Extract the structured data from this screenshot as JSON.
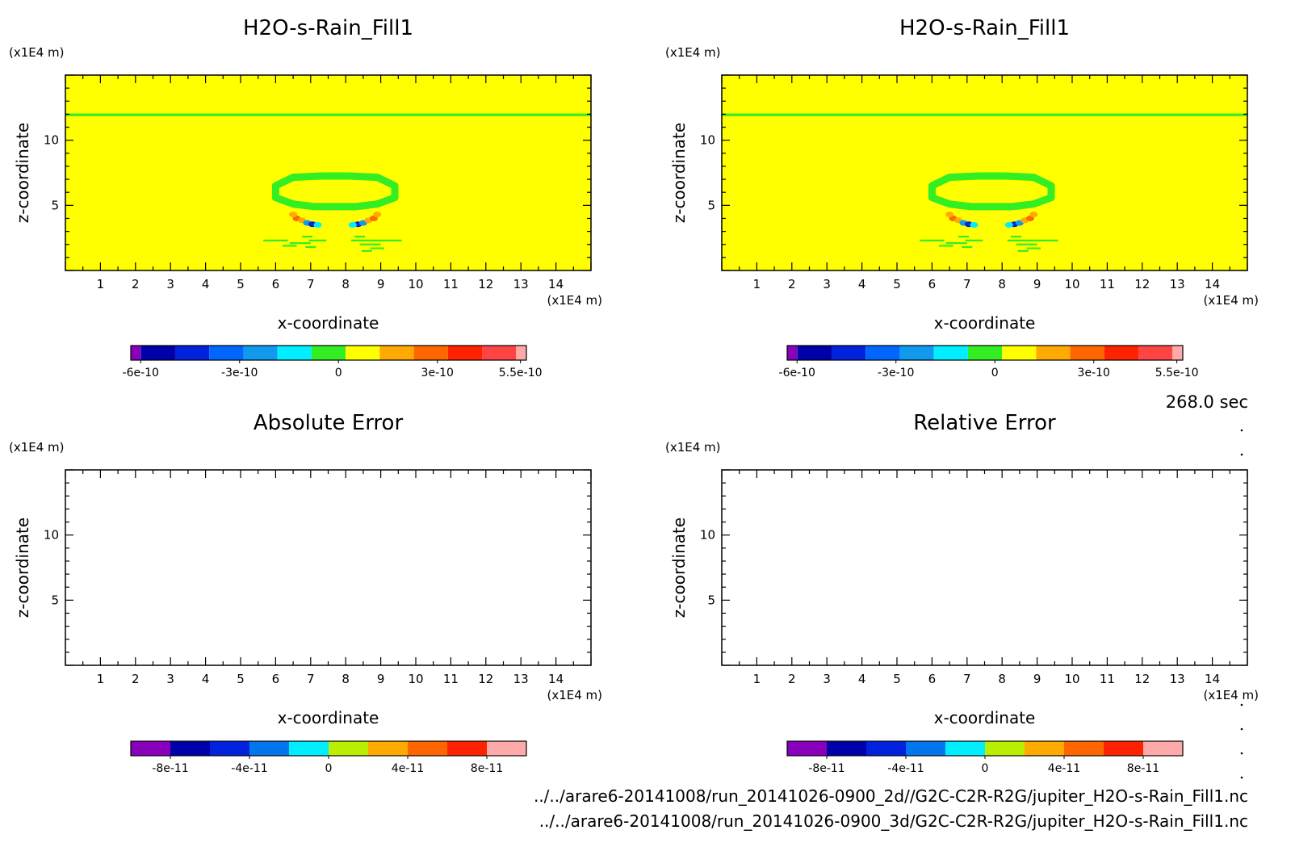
{
  "footer": {
    "time_label": "268.0 sec",
    "file_paths": [
      "../../arare6-20141008/run_20141026-0900_2d//G2C-C2R-R2G/jupiter_H2O-s-Rain_Fill1.nc",
      "../../arare6-20141008/run_20141026-0900_3d/G2C-C2R-R2G/jupiter_H2O-s-Rain_Fill1.nc"
    ]
  },
  "colors": {
    "field_background": "#ffff00",
    "field_green": "#33ee22",
    "frame": "#000000"
  },
  "chart_data": [
    {
      "type": "heatmap",
      "title": "H2O-s-Rain_Fill1",
      "xlabel": "x-coordinate",
      "ylabel": "z-coordinate",
      "x_unit": "(x1E4 m)",
      "y_unit": "(x1E4 m)",
      "xlim": [
        0,
        15
      ],
      "ylim": [
        0,
        15
      ],
      "x_ticks": [
        "1",
        "2",
        "3",
        "4",
        "5",
        "6",
        "7",
        "8",
        "9",
        "10",
        "11",
        "12",
        "13",
        "14"
      ],
      "y_ticks": [
        "5",
        "10"
      ],
      "filled": true,
      "colorbar": {
        "tick_labels": [
          "-6e-10",
          "-3e-10",
          "0",
          "3e-10",
          "5.5e-10"
        ],
        "colors": [
          "#8800bb",
          "#0000aa",
          "#0022dd",
          "#0066ff",
          "#1199ee",
          "#00eeff",
          "#33ee22",
          "#ffff00",
          "#ffaa00",
          "#ff6600",
          "#ff2200",
          "#ff4444",
          "#ffaaaa"
        ]
      }
    },
    {
      "type": "heatmap",
      "title": "H2O-s-Rain_Fill1",
      "xlabel": "x-coordinate",
      "ylabel": "z-coordinate",
      "x_unit": "(x1E4 m)",
      "y_unit": "(x1E4 m)",
      "xlim": [
        0,
        15
      ],
      "ylim": [
        0,
        15
      ],
      "x_ticks": [
        "1",
        "2",
        "3",
        "4",
        "5",
        "6",
        "7",
        "8",
        "9",
        "10",
        "11",
        "12",
        "13",
        "14"
      ],
      "y_ticks": [
        "5",
        "10"
      ],
      "filled": true,
      "colorbar": {
        "tick_labels": [
          "-6e-10",
          "-3e-10",
          "0",
          "3e-10",
          "5.5e-10"
        ],
        "colors": [
          "#8800bb",
          "#0000aa",
          "#0022dd",
          "#0066ff",
          "#1199ee",
          "#00eeff",
          "#33ee22",
          "#ffff00",
          "#ffaa00",
          "#ff6600",
          "#ff2200",
          "#ff4444",
          "#ffaaaa"
        ]
      }
    },
    {
      "type": "heatmap",
      "title": "Absolute Error",
      "xlabel": "x-coordinate",
      "ylabel": "z-coordinate",
      "x_unit": "(x1E4 m)",
      "y_unit": "(x1E4 m)",
      "xlim": [
        0,
        15
      ],
      "ylim": [
        0,
        15
      ],
      "x_ticks": [
        "1",
        "2",
        "3",
        "4",
        "5",
        "6",
        "7",
        "8",
        "9",
        "10",
        "11",
        "12",
        "13",
        "14"
      ],
      "y_ticks": [
        "5",
        "10"
      ],
      "filled": false,
      "colorbar": {
        "tick_labels": [
          "-8e-11",
          "-4e-11",
          "0",
          "4e-11",
          "8e-11"
        ],
        "colors": [
          "#8800bb",
          "#0000aa",
          "#0022dd",
          "#0077ee",
          "#00eeff",
          "#bbee00",
          "#ffaa00",
          "#ff6600",
          "#ff2200",
          "#ffaaaa"
        ]
      }
    },
    {
      "type": "heatmap",
      "title": "Relative Error",
      "xlabel": "x-coordinate",
      "ylabel": "z-coordinate",
      "x_unit": "(x1E4 m)",
      "y_unit": "(x1E4 m)",
      "xlim": [
        0,
        15
      ],
      "ylim": [
        0,
        15
      ],
      "x_ticks": [
        "1",
        "2",
        "3",
        "4",
        "5",
        "6",
        "7",
        "8",
        "9",
        "10",
        "11",
        "12",
        "13",
        "14"
      ],
      "y_ticks": [
        "5",
        "10"
      ],
      "filled": false,
      "colorbar": {
        "tick_labels": [
          "-8e-11",
          "-4e-11",
          "0",
          "4e-11",
          "8e-11"
        ],
        "colors": [
          "#8800bb",
          "#0000aa",
          "#0022dd",
          "#0077ee",
          "#00eeff",
          "#bbee00",
          "#ffaa00",
          "#ff6600",
          "#ff2200",
          "#ffaaaa"
        ]
      }
    }
  ]
}
